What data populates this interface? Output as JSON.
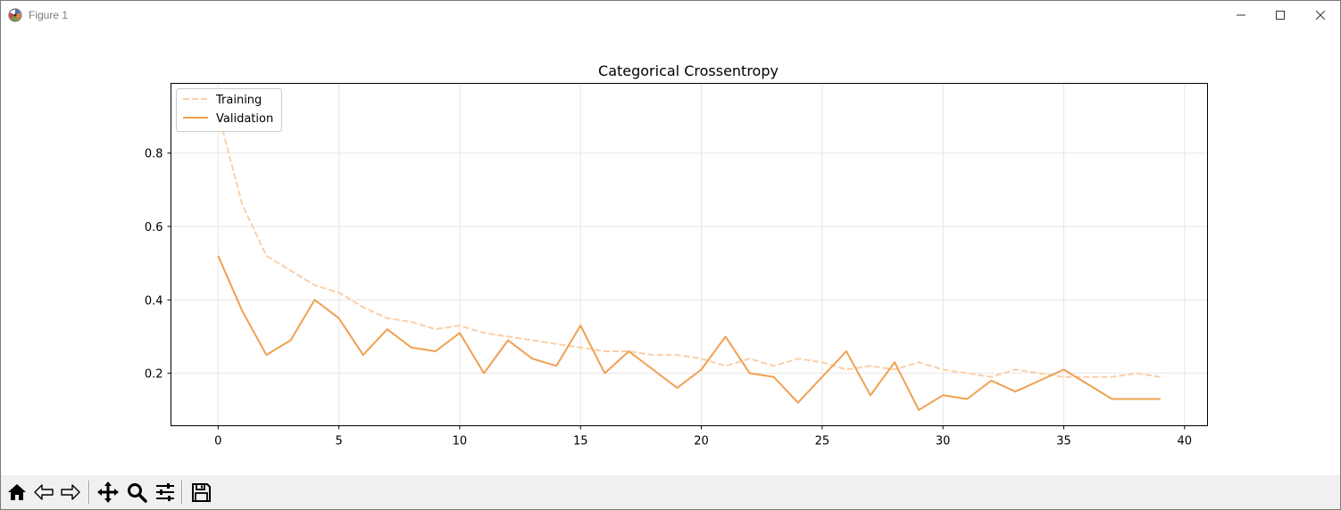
{
  "window": {
    "title": "Figure 1",
    "controls": [
      "minimize",
      "maximize",
      "close"
    ]
  },
  "toolbar": {
    "buttons": [
      {
        "name": "home",
        "icon": "home-icon"
      },
      {
        "name": "back",
        "icon": "arrow-left-icon"
      },
      {
        "name": "forward",
        "icon": "arrow-right-icon"
      },
      {
        "name": "pan",
        "icon": "move-icon"
      },
      {
        "name": "zoom",
        "icon": "magnifier-icon"
      },
      {
        "name": "configure-subplots",
        "icon": "sliders-icon"
      },
      {
        "name": "save",
        "icon": "floppy-disk-icon"
      }
    ]
  },
  "chart_data": {
    "type": "line",
    "title": "Categorical Crossentropy",
    "xlabel": "",
    "ylabel": "",
    "xlim": [
      -1.95,
      40.95
    ],
    "ylim": [
      0.057,
      0.99
    ],
    "xticks": [
      0,
      5,
      10,
      15,
      20,
      25,
      30,
      35,
      40
    ],
    "yticks": [
      0.2,
      0.4,
      0.6,
      0.8
    ],
    "ytick_labels": [
      "0.2",
      "0.4",
      "0.6",
      "0.8"
    ],
    "grid": true,
    "legend": "upper-left",
    "series": [
      {
        "name": "Training",
        "style": "dashed",
        "color": "#fbcfa7",
        "x": [
          0,
          1,
          2,
          3,
          4,
          5,
          6,
          7,
          8,
          9,
          10,
          11,
          12,
          13,
          14,
          15,
          16,
          17,
          18,
          19,
          20,
          21,
          22,
          23,
          24,
          25,
          26,
          27,
          28,
          29,
          30,
          31,
          32,
          33,
          34,
          35,
          36,
          37,
          38,
          39
        ],
        "values": [
          0.91,
          0.66,
          0.52,
          0.48,
          0.44,
          0.42,
          0.38,
          0.35,
          0.34,
          0.32,
          0.33,
          0.31,
          0.3,
          0.29,
          0.28,
          0.27,
          0.26,
          0.26,
          0.25,
          0.25,
          0.24,
          0.22,
          0.24,
          0.22,
          0.24,
          0.23,
          0.21,
          0.22,
          0.21,
          0.23,
          0.21,
          0.2,
          0.19,
          0.21,
          0.2,
          0.19,
          0.19,
          0.19,
          0.2,
          0.19
        ]
      },
      {
        "name": "Validation",
        "style": "solid",
        "color": "#f0a050",
        "x": [
          0,
          1,
          2,
          3,
          4,
          5,
          6,
          7,
          8,
          9,
          10,
          11,
          12,
          13,
          14,
          15,
          16,
          17,
          18,
          19,
          20,
          21,
          22,
          23,
          24,
          25,
          26,
          27,
          28,
          29,
          30,
          31,
          32,
          33,
          34,
          35,
          36,
          37,
          38,
          39
        ],
        "values": [
          0.52,
          0.37,
          0.25,
          0.29,
          0.4,
          0.35,
          0.25,
          0.32,
          0.27,
          0.26,
          0.31,
          0.2,
          0.29,
          0.24,
          0.22,
          0.33,
          0.2,
          0.26,
          0.21,
          0.16,
          0.21,
          0.3,
          0.2,
          0.19,
          0.12,
          0.19,
          0.26,
          0.14,
          0.23,
          0.1,
          0.14,
          0.13,
          0.18,
          0.15,
          0.18,
          0.21,
          0.17,
          0.13,
          0.13,
          0.13
        ]
      }
    ]
  }
}
